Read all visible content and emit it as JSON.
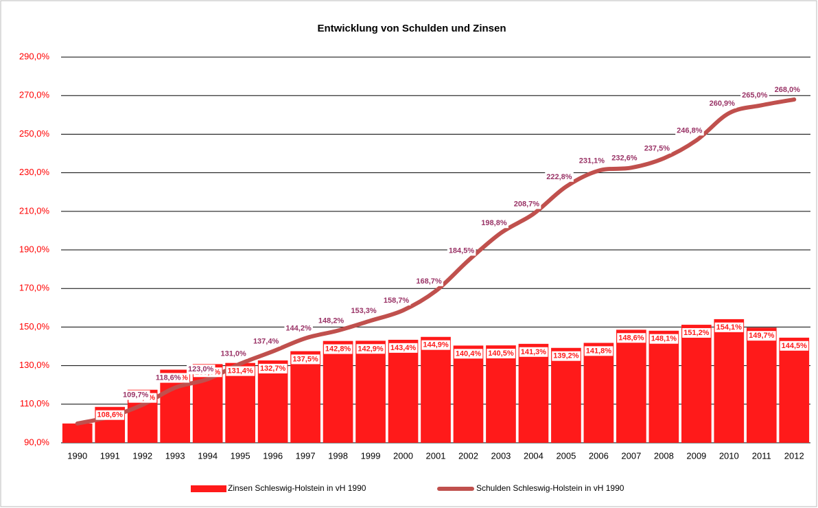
{
  "chart_data": {
    "type": "bar-line",
    "title": "Entwicklung von Schulden und Zinsen",
    "categories": [
      "1990",
      "1991",
      "1992",
      "1993",
      "1994",
      "1995",
      "1996",
      "1997",
      "1998",
      "1999",
      "2000",
      "2001",
      "2002",
      "2003",
      "2004",
      "2005",
      "2006",
      "2007",
      "2008",
      "2009",
      "2010",
      "2011",
      "2012"
    ],
    "series": [
      {
        "name": "Zinsen Schleswig-Holstein in vH 1990",
        "type": "bar",
        "color": "#ff1a1a",
        "values": [
          100,
          108.6,
          117.5,
          127.9,
          130.8,
          131.4,
          132.7,
          137.5,
          142.8,
          142.9,
          143.4,
          144.9,
          140.4,
          140.5,
          141.3,
          139.2,
          141.8,
          148.6,
          148.1,
          151.2,
          154.1,
          149.7,
          144.5
        ],
        "value_labels": [
          null,
          "108,6%",
          "117,5%",
          "127,9%",
          "130,8%",
          "131,4%",
          "132,7%",
          "137,5%",
          "142,8%",
          "142,9%",
          "143,4%",
          "144,9%",
          "140,4%",
          "140,5%",
          "141,3%",
          "139,2%",
          "141,8%",
          "148,6%",
          "148,1%",
          "151,2%",
          "154,1%",
          "149,7%",
          "144,5%"
        ]
      },
      {
        "name": "Schulden Schleswig-Holstein in vH 1990",
        "type": "line",
        "color": "#c0504d",
        "label_color": "#993366",
        "values": [
          100,
          103.5,
          109.7,
          118.6,
          123.0,
          131.0,
          137.4,
          144.2,
          148.2,
          153.3,
          158.7,
          168.7,
          184.5,
          198.8,
          208.7,
          222.8,
          231.1,
          232.6,
          237.5,
          246.8,
          260.9,
          265.0,
          268.0
        ],
        "value_labels": [
          null,
          null,
          "109,7%",
          "118,6%",
          "123,0%",
          "131,0%",
          "137,4%",
          "144,2%",
          "148,2%",
          "153,3%",
          "158,7%",
          "168,7%",
          "184,5%",
          "198,8%",
          "208,7%",
          "222,8%",
          "231,1%",
          "232,6%",
          "237,5%",
          "246,8%",
          "260,9%",
          "265,0%",
          "268,0%"
        ]
      }
    ],
    "ylim": [
      90,
      300
    ],
    "yticks": [
      {
        "value": 90,
        "label": "90,0%"
      },
      {
        "value": 110,
        "label": "110,0%"
      },
      {
        "value": 130,
        "label": "130,0%"
      },
      {
        "value": 150,
        "label": "150,0%"
      },
      {
        "value": 170,
        "label": "170,0%"
      },
      {
        "value": 190,
        "label": "190,0%"
      },
      {
        "value": 210,
        "label": "210,0%"
      },
      {
        "value": 230,
        "label": "230,0%"
      },
      {
        "value": 250,
        "label": "250,0%"
      },
      {
        "value": 270,
        "label": "270,0%"
      },
      {
        "value": 290,
        "label": "290,0%"
      }
    ],
    "grid": true,
    "legend": "bottom"
  }
}
